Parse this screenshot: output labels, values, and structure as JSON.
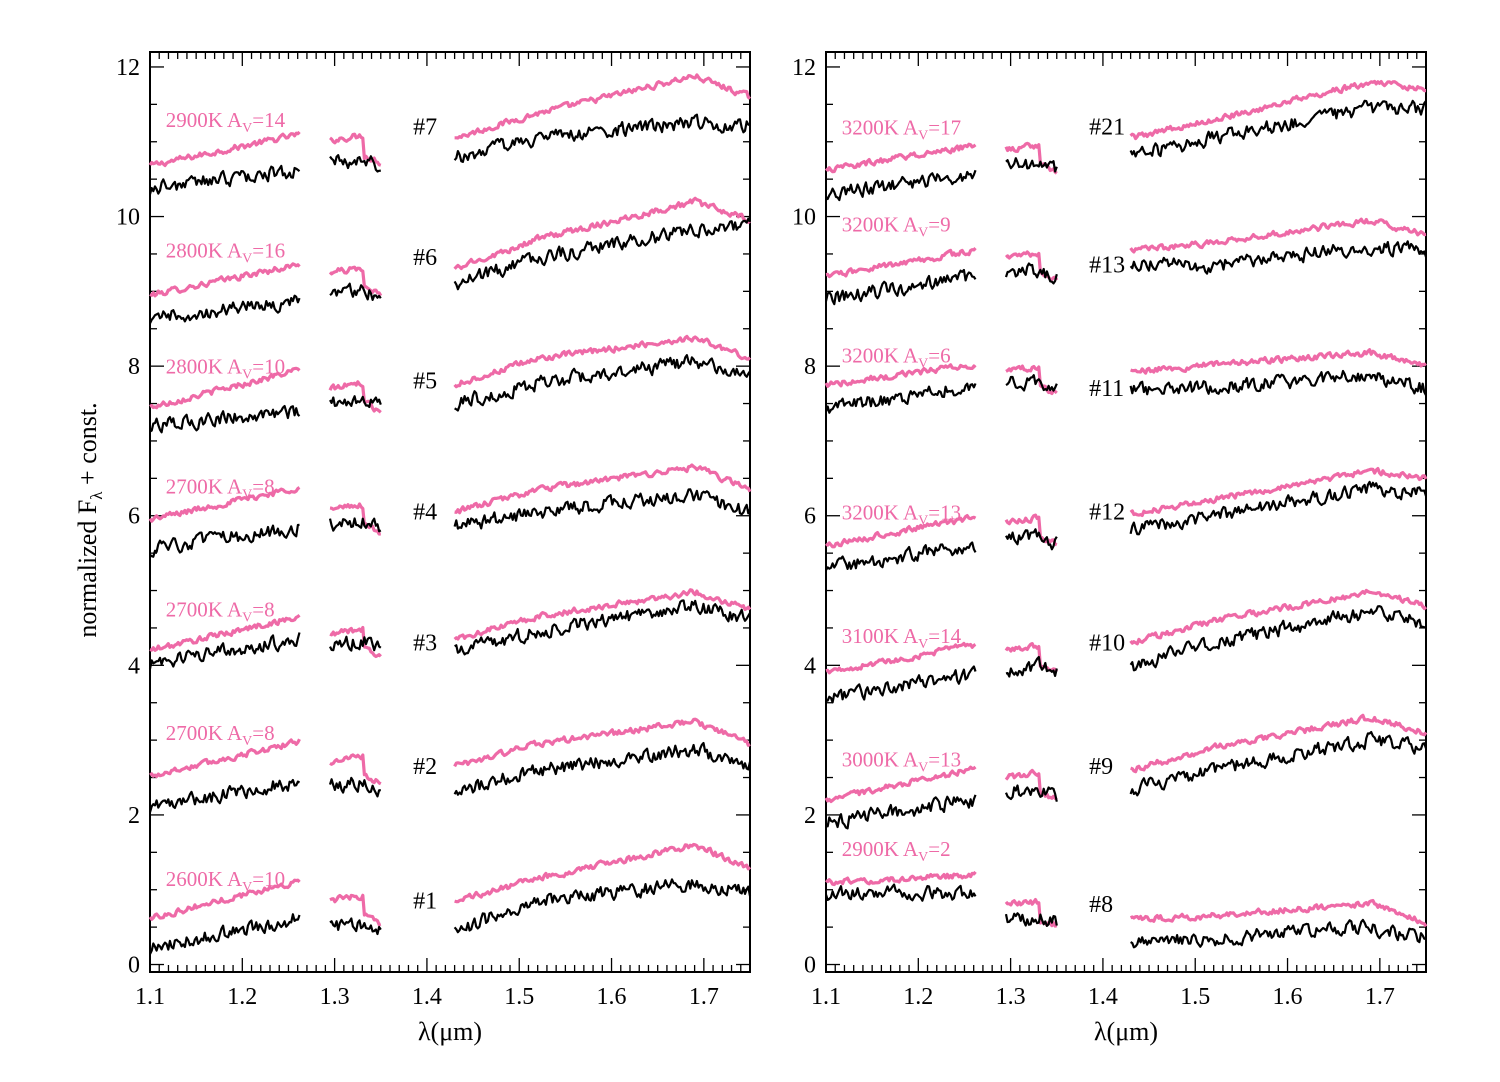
{
  "figure": {
    "y_axis_label": "normalized F",
    "y_axis_sub": "λ",
    "y_axis_suffix": " + const.",
    "model_color": "#ee6aa7",
    "observed_color": "#000000",
    "axis_color": "#000000"
  },
  "chart_data": [
    {
      "type": "line",
      "panel": "left",
      "xlabel": "λ(μm)",
      "xlim": [
        1.1,
        1.75
      ],
      "ylim": [
        -0.1,
        12.2
      ],
      "xticks": [
        1.1,
        1.2,
        1.3,
        1.4,
        1.5,
        1.6,
        1.7
      ],
      "yticks": [
        0,
        2,
        4,
        6,
        8,
        10,
        12
      ],
      "tick_labels_x": [
        "1.1",
        "1.2",
        "1.3",
        "1.4",
        "1.5",
        "1.6",
        "1.7"
      ],
      "tick_labels_y": [
        "0",
        "2",
        "4",
        "6",
        "8",
        "10",
        "12"
      ],
      "spectral_segments_um": [
        [
          1.1,
          1.262
        ],
        [
          1.295,
          1.35
        ],
        [
          1.43,
          1.75
        ]
      ],
      "stars": [
        {
          "id": "#7",
          "model": "2900K",
          "av": "14",
          "obs": [
            10.38,
            10.62,
            10.72,
            10.79,
            11.05,
            11.25,
            11.22
          ],
          "mod": [
            10.68,
            11.1,
            11.02,
            11.05,
            11.38,
            11.88,
            11.6
          ],
          "id_y": 11.1,
          "label_y": 11.2
        },
        {
          "id": "#6",
          "model": "2800K",
          "av": "16",
          "obs": [
            8.65,
            8.86,
            8.98,
            9.1,
            9.45,
            9.82,
            9.87
          ],
          "mod": [
            8.95,
            9.36,
            9.25,
            9.3,
            9.7,
            10.2,
            9.95
          ],
          "id_y": 9.35,
          "label_y": 9.45
        },
        {
          "id": "#5",
          "model": "2800K",
          "av": "10",
          "obs": [
            7.2,
            7.4,
            7.52,
            7.5,
            7.78,
            8.05,
            7.9
          ],
          "mod": [
            7.45,
            7.95,
            7.7,
            7.75,
            8.1,
            8.38,
            8.1
          ],
          "id_y": 7.7,
          "label_y": 7.9
        },
        {
          "id": "#4",
          "model": "2700K",
          "av": "8",
          "obs": [
            5.55,
            5.85,
            5.88,
            5.85,
            6.05,
            6.28,
            6.05
          ],
          "mod": [
            5.95,
            6.38,
            6.08,
            6.05,
            6.35,
            6.65,
            6.35
          ],
          "id_y": 5.95,
          "label_y": 6.3
        },
        {
          "id": "#3",
          "model": "2700K",
          "av": "8",
          "obs": [
            4.02,
            4.35,
            4.28,
            4.18,
            4.45,
            4.8,
            4.62
          ],
          "mod": [
            4.2,
            4.65,
            4.42,
            4.35,
            4.65,
            4.98,
            4.75
          ],
          "id_y": 4.2,
          "label_y": 4.65
        },
        {
          "id": "#2",
          "model": "2700K",
          "av": "8",
          "obs": [
            2.1,
            2.45,
            2.38,
            2.3,
            2.6,
            2.88,
            2.65
          ],
          "mod": [
            2.52,
            2.98,
            2.72,
            2.65,
            2.95,
            3.25,
            2.95
          ],
          "id_y": 2.55,
          "label_y": 3.0
        },
        {
          "id": "#1",
          "model": "2600K",
          "av": "10",
          "obs": [
            0.2,
            0.62,
            0.48,
            0.45,
            0.85,
            1.08,
            0.95
          ],
          "mod": [
            0.62,
            1.12,
            0.85,
            0.85,
            1.15,
            1.6,
            1.28
          ],
          "id_y": 0.75,
          "label_y": 1.05
        }
      ]
    },
    {
      "type": "line",
      "panel": "right",
      "xlabel": "λ(μm)",
      "xlim": [
        1.1,
        1.75
      ],
      "ylim": [
        -0.1,
        12.2
      ],
      "xticks": [
        1.1,
        1.2,
        1.3,
        1.4,
        1.5,
        1.6,
        1.7
      ],
      "yticks": [
        0,
        2,
        4,
        6,
        8,
        10,
        12
      ],
      "tick_labels_x": [
        "1.1",
        "1.2",
        "1.3",
        "1.4",
        "1.5",
        "1.6",
        "1.7"
      ],
      "tick_labels_y": [
        "0",
        "2",
        "4",
        "6",
        "8",
        "10",
        "12"
      ],
      "spectral_segments_um": [
        [
          1.1,
          1.262
        ],
        [
          1.295,
          1.35
        ],
        [
          1.43,
          1.75
        ]
      ],
      "stars": [
        {
          "id": "#21",
          "model": "3200K",
          "av": "17",
          "obs": [
            10.3,
            10.55,
            10.68,
            10.8,
            11.05,
            11.45,
            11.45
          ],
          "mod": [
            10.62,
            10.95,
            10.9,
            11.05,
            11.3,
            11.8,
            11.7
          ],
          "id_y": 11.1,
          "label_y": 11.1
        },
        {
          "id": "#13",
          "model": "3200K",
          "av": "9",
          "obs": [
            8.9,
            9.2,
            9.25,
            9.35,
            9.35,
            9.6,
            9.55
          ],
          "mod": [
            9.2,
            9.55,
            9.45,
            9.55,
            9.65,
            9.95,
            9.75
          ],
          "id_y": 9.25,
          "label_y": 9.8
        },
        {
          "id": "#11",
          "model": "3200K",
          "av": "6",
          "obs": [
            7.42,
            7.75,
            7.75,
            7.68,
            7.72,
            7.88,
            7.7
          ],
          "mod": [
            7.75,
            8.02,
            7.95,
            7.92,
            8.02,
            8.18,
            8.0
          ],
          "id_y": 7.6,
          "label_y": 8.05
        },
        {
          "id": "#12",
          "model": "3200K",
          "av": "13",
          "obs": [
            5.3,
            5.6,
            5.68,
            5.8,
            6.0,
            6.35,
            6.3
          ],
          "mod": [
            5.6,
            5.98,
            5.92,
            6.02,
            6.22,
            6.6,
            6.5
          ],
          "id_y": 5.95,
          "label_y": 5.95
        },
        {
          "id": "#10",
          "model": "3100K",
          "av": "14",
          "obs": [
            3.55,
            3.88,
            3.95,
            3.98,
            4.3,
            4.72,
            4.58
          ],
          "mod": [
            3.9,
            4.28,
            4.2,
            4.3,
            4.6,
            4.98,
            4.8
          ],
          "id_y": 4.2,
          "label_y": 4.3
        },
        {
          "id": "#9",
          "model": "3000K",
          "av": "13",
          "obs": [
            1.9,
            2.2,
            2.3,
            2.35,
            2.6,
            3.0,
            2.88
          ],
          "mod": [
            2.2,
            2.62,
            2.5,
            2.6,
            2.9,
            3.3,
            3.1
          ],
          "id_y": 2.55,
          "label_y": 2.65
        },
        {
          "id": "#8",
          "model": "2900K",
          "av": "2",
          "obs": [
            0.95,
            0.95,
            0.62,
            0.3,
            0.35,
            0.5,
            0.35
          ],
          "mod": [
            1.1,
            1.2,
            0.82,
            0.6,
            0.65,
            0.82,
            0.55
          ],
          "id_y": 0.7,
          "label_y": 1.45
        }
      ]
    }
  ]
}
